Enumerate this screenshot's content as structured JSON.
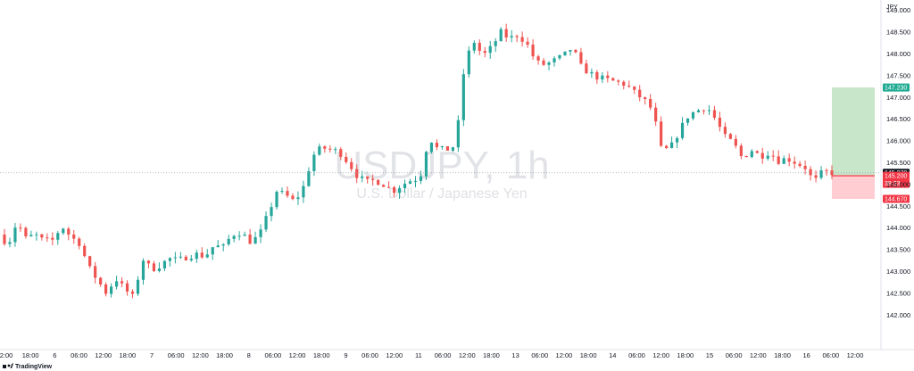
{
  "window": {
    "brand": "TradingView",
    "currency": "JPY"
  },
  "watermark": {
    "symbol": "USDJPY, 1h",
    "description": "U.S. Dollar / Japanese Yen"
  },
  "chart_data": {
    "type": "candlestick",
    "symbol": "USDJPY",
    "interval": "1h",
    "ylim": [
      141.8,
      149.3
    ],
    "y_ticks": [
      142.0,
      142.5,
      143.0,
      143.5,
      144.0,
      144.5,
      145.0,
      145.5,
      146.0,
      146.5,
      147.0,
      147.5,
      148.0,
      148.5,
      149.0
    ],
    "y_tick_labels": [
      "142.000",
      "142.500",
      "143.000",
      "143.500",
      "144.000",
      "144.500",
      "145.000",
      "145.500",
      "146.000",
      "146.500",
      "147.000",
      "147.500",
      "148.000",
      "148.500",
      "149.000"
    ],
    "x_tick_labels": [
      "2:00",
      "18:00",
      "6",
      "06:00",
      "12:00",
      "18:00",
      "7",
      "06:00",
      "12:00",
      "18:00",
      "8",
      "06:00",
      "12:00",
      "18:00",
      "9",
      "06:00",
      "12:00",
      "11",
      "06:00",
      "12:00",
      "18:00",
      "13",
      "06:00",
      "12:00",
      "18:00",
      "14",
      "06:00",
      "12:00",
      "18:00",
      "15",
      "06:00",
      "12:00",
      "18:00",
      "16",
      "06:00",
      "12:00"
    ],
    "close_path": [
      [
        0,
        143.85
      ],
      [
        10,
        143.62
      ],
      [
        20,
        144.15
      ],
      [
        30,
        143.75
      ],
      [
        40,
        143.85
      ],
      [
        50,
        143.7
      ],
      [
        60,
        143.72
      ],
      [
        70,
        144.05
      ],
      [
        80,
        143.8
      ],
      [
        90,
        143.65
      ],
      [
        100,
        143.1
      ],
      [
        110,
        142.8
      ],
      [
        120,
        142.5
      ],
      [
        130,
        142.85
      ],
      [
        140,
        142.6
      ],
      [
        150,
        142.4
      ],
      [
        160,
        143.3
      ],
      [
        170,
        143.05
      ],
      [
        180,
        143.15
      ],
      [
        190,
        143.3
      ],
      [
        200,
        143.25
      ],
      [
        210,
        143.35
      ],
      [
        220,
        143.4
      ],
      [
        230,
        143.35
      ],
      [
        240,
        143.6
      ],
      [
        250,
        143.55
      ],
      [
        260,
        143.85
      ],
      [
        270,
        143.9
      ],
      [
        280,
        143.7
      ],
      [
        290,
        143.8
      ],
      [
        300,
        144.3
      ],
      [
        310,
        144.85
      ],
      [
        320,
        144.75
      ],
      [
        330,
        144.6
      ],
      [
        340,
        144.95
      ],
      [
        350,
        145.65
      ],
      [
        360,
        145.85
      ],
      [
        370,
        145.8
      ],
      [
        380,
        145.75
      ],
      [
        390,
        145.5
      ],
      [
        400,
        145.2
      ],
      [
        410,
        145.05
      ],
      [
        420,
        145.1
      ],
      [
        430,
        145.0
      ],
      [
        440,
        144.85
      ],
      [
        450,
        145.0
      ],
      [
        460,
        145.1
      ],
      [
        470,
        145.15
      ],
      [
        480,
        146.1
      ],
      [
        490,
        145.8
      ],
      [
        500,
        145.8
      ],
      [
        510,
        145.9
      ],
      [
        520,
        147.8
      ],
      [
        530,
        148.3
      ],
      [
        540,
        147.95
      ],
      [
        550,
        148.15
      ],
      [
        560,
        148.5
      ],
      [
        570,
        148.35
      ],
      [
        580,
        148.45
      ],
      [
        590,
        148.2
      ],
      [
        600,
        147.8
      ],
      [
        610,
        147.75
      ],
      [
        620,
        147.85
      ],
      [
        630,
        147.95
      ],
      [
        640,
        148.15
      ],
      [
        650,
        147.7
      ],
      [
        660,
        147.55
      ],
      [
        670,
        147.45
      ],
      [
        680,
        147.4
      ],
      [
        690,
        147.35
      ],
      [
        700,
        147.3
      ],
      [
        710,
        147.1
      ],
      [
        720,
        146.95
      ],
      [
        730,
        146.7
      ],
      [
        740,
        145.75
      ],
      [
        750,
        145.85
      ],
      [
        760,
        146.25
      ],
      [
        770,
        146.6
      ],
      [
        780,
        146.7
      ],
      [
        790,
        146.8
      ],
      [
        800,
        146.5
      ],
      [
        810,
        146.1
      ],
      [
        820,
        145.95
      ],
      [
        830,
        145.6
      ],
      [
        840,
        145.8
      ],
      [
        850,
        145.65
      ],
      [
        860,
        145.75
      ],
      [
        870,
        145.55
      ],
      [
        880,
        145.6
      ],
      [
        890,
        145.5
      ],
      [
        900,
        145.4
      ],
      [
        910,
        145.05
      ],
      [
        920,
        145.3
      ],
      [
        930,
        145.27
      ]
    ],
    "price_lines": {
      "take_profit": {
        "value": 147.23,
        "label": "147.230",
        "color": "#22ab94"
      },
      "last_price": {
        "value": 145.27,
        "label": "145.270",
        "color": "#131722"
      },
      "entry": {
        "value": 145.2,
        "label": "145.200",
        "timer": "38:23",
        "color": "#f23645"
      },
      "stop_loss": {
        "value": 144.67,
        "label": "144.670",
        "color": "#f23645"
      }
    },
    "position_box": {
      "profit_color": "#c8e6c9",
      "loss_color": "#ffcdd2"
    },
    "up_color": "#26a69a",
    "down_color": "#ef5350",
    "grid": false
  }
}
